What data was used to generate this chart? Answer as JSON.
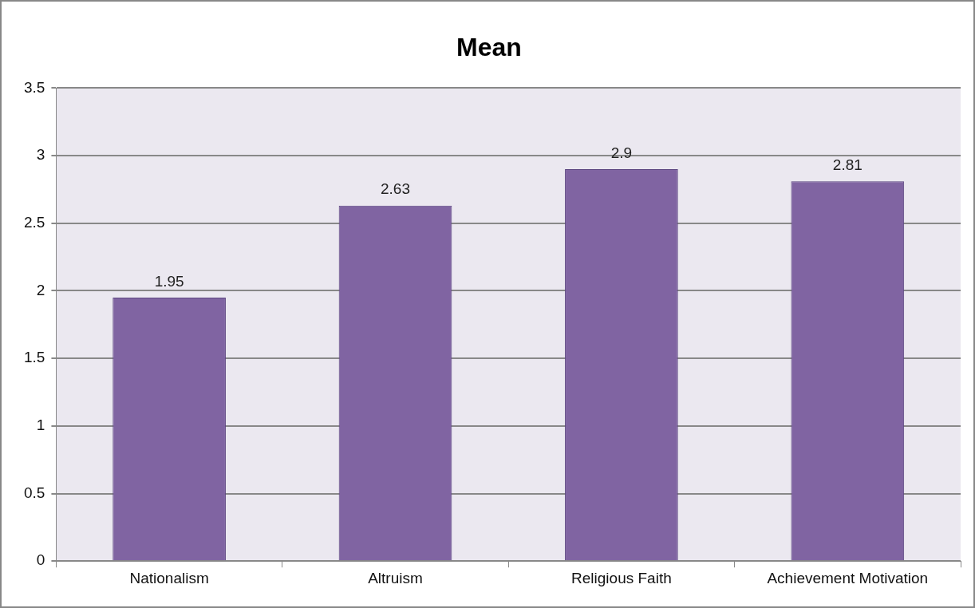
{
  "chart_data": {
    "type": "bar",
    "title": "Mean",
    "categories": [
      "Nationalism",
      "Altruism",
      "Religious Faith",
      "Achievement Motivation"
    ],
    "values": [
      1.95,
      2.63,
      2.9,
      2.81
    ],
    "color": "#8064a2",
    "ylim": [
      0,
      3.5
    ],
    "yticks": [
      0,
      0.5,
      1,
      1.5,
      2,
      2.5,
      3,
      3.5
    ],
    "grid": "y",
    "data_labels": true
  }
}
